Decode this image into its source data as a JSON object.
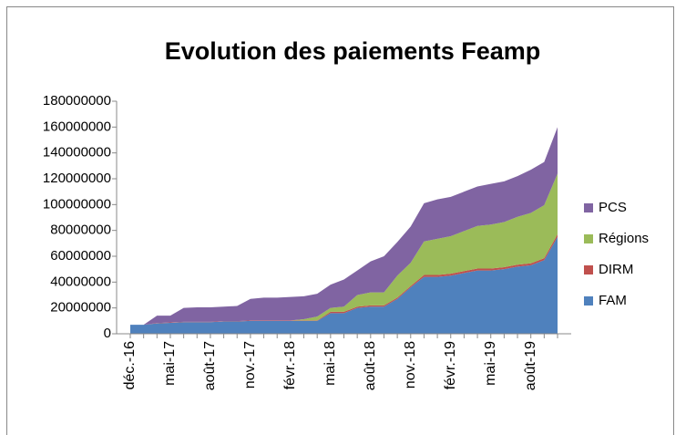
{
  "chart_data": {
    "type": "area",
    "stacked": true,
    "title": "Evolution des paiements Feamp",
    "categories": [
      "déc.-16",
      null,
      null,
      "mai-17",
      null,
      null,
      "août-17",
      null,
      null,
      "nov.-17",
      null,
      null,
      "févr.-18",
      null,
      null,
      "mai-18",
      null,
      null,
      "août-18",
      null,
      null,
      "nov.-18",
      null,
      null,
      "févr.-19",
      null,
      null,
      "mai-19",
      null,
      null,
      "août-19",
      null,
      null
    ],
    "series": [
      {
        "name": "FAM",
        "color": "#4f81bd",
        "values": [
          7000000,
          7000000,
          8000000,
          8500000,
          9000000,
          9000000,
          9000000,
          9500000,
          9500000,
          10000000,
          10000000,
          10000000,
          10000000,
          10000000,
          10000000,
          16000000,
          16000000,
          20000000,
          21000000,
          21000000,
          27000000,
          36000000,
          44000000,
          44000000,
          45000000,
          47000000,
          49000000,
          49000000,
          50000000,
          52000000,
          53000000,
          57000000,
          75000000
        ]
      },
      {
        "name": "DIRM",
        "color": "#c0504d",
        "values": [
          0,
          0,
          300000,
          300000,
          300000,
          300000,
          300000,
          300000,
          300000,
          300000,
          300000,
          300000,
          300000,
          300000,
          300000,
          1000000,
          1000000,
          1000000,
          1000000,
          1000000,
          1000000,
          1000000,
          1500000,
          1500000,
          1500000,
          1500000,
          1500000,
          1500000,
          1500000,
          1500000,
          1500000,
          1500000,
          2000000
        ]
      },
      {
        "name": "Régions",
        "color": "#9bbb59",
        "values": [
          0,
          0,
          0,
          0,
          0,
          0,
          0,
          0,
          0,
          0,
          0,
          0,
          0,
          1000000,
          3000000,
          3000000,
          4000000,
          9000000,
          10000000,
          10000000,
          17000000,
          18000000,
          26000000,
          28000000,
          29000000,
          31000000,
          33000000,
          34000000,
          35000000,
          37000000,
          39000000,
          41000000,
          47000000
        ]
      },
      {
        "name": "PCS",
        "color": "#8064a2",
        "values": [
          0,
          0,
          5700000,
          5200000,
          10700000,
          11200000,
          11200000,
          11200000,
          11700000,
          16700000,
          17700000,
          17700000,
          18200000,
          17700000,
          17700000,
          18000000,
          21000000,
          19000000,
          24000000,
          28000000,
          26000000,
          28000000,
          29500000,
          30500000,
          30500000,
          30500000,
          30500000,
          31500000,
          31500000,
          31500000,
          33500000,
          33500000,
          36000000
        ]
      }
    ],
    "ylim": [
      0,
      180000000
    ],
    "yticks": [
      0,
      20000000,
      40000000,
      60000000,
      80000000,
      100000000,
      120000000,
      140000000,
      160000000,
      180000000
    ],
    "legend": "right"
  }
}
